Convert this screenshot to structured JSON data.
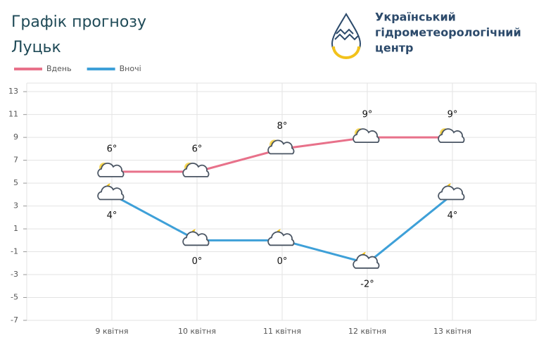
{
  "header": {
    "org": [
      "Український",
      "гідрометеорологічний",
      "центр"
    ]
  },
  "chart_data": {
    "type": "line",
    "title": "Графік прогнозу",
    "subtitle": "Луцьк",
    "categories": [
      "9 квітня",
      "10 квітня",
      "11 квітня",
      "12 квітня",
      "13 квітня"
    ],
    "series": [
      {
        "name": "Вдень",
        "color": "#e8718a",
        "values": [
          6,
          6,
          8,
          9,
          9
        ],
        "value_labels": [
          "6°",
          "6°",
          "8°",
          "9°",
          "9°"
        ]
      },
      {
        "name": "Вночі",
        "color": "#3ea0d8",
        "values": [
          4,
          0,
          0,
          -2,
          4
        ],
        "value_labels": [
          "4°",
          "0°",
          "0°",
          "-2°",
          "4°"
        ]
      }
    ],
    "ylim": [
      -7,
      13.75
    ],
    "yticks": [
      -7,
      -5,
      -3,
      -1,
      1,
      3,
      5,
      7,
      9,
      11,
      13
    ],
    "grid": true,
    "legend": "top-left"
  }
}
